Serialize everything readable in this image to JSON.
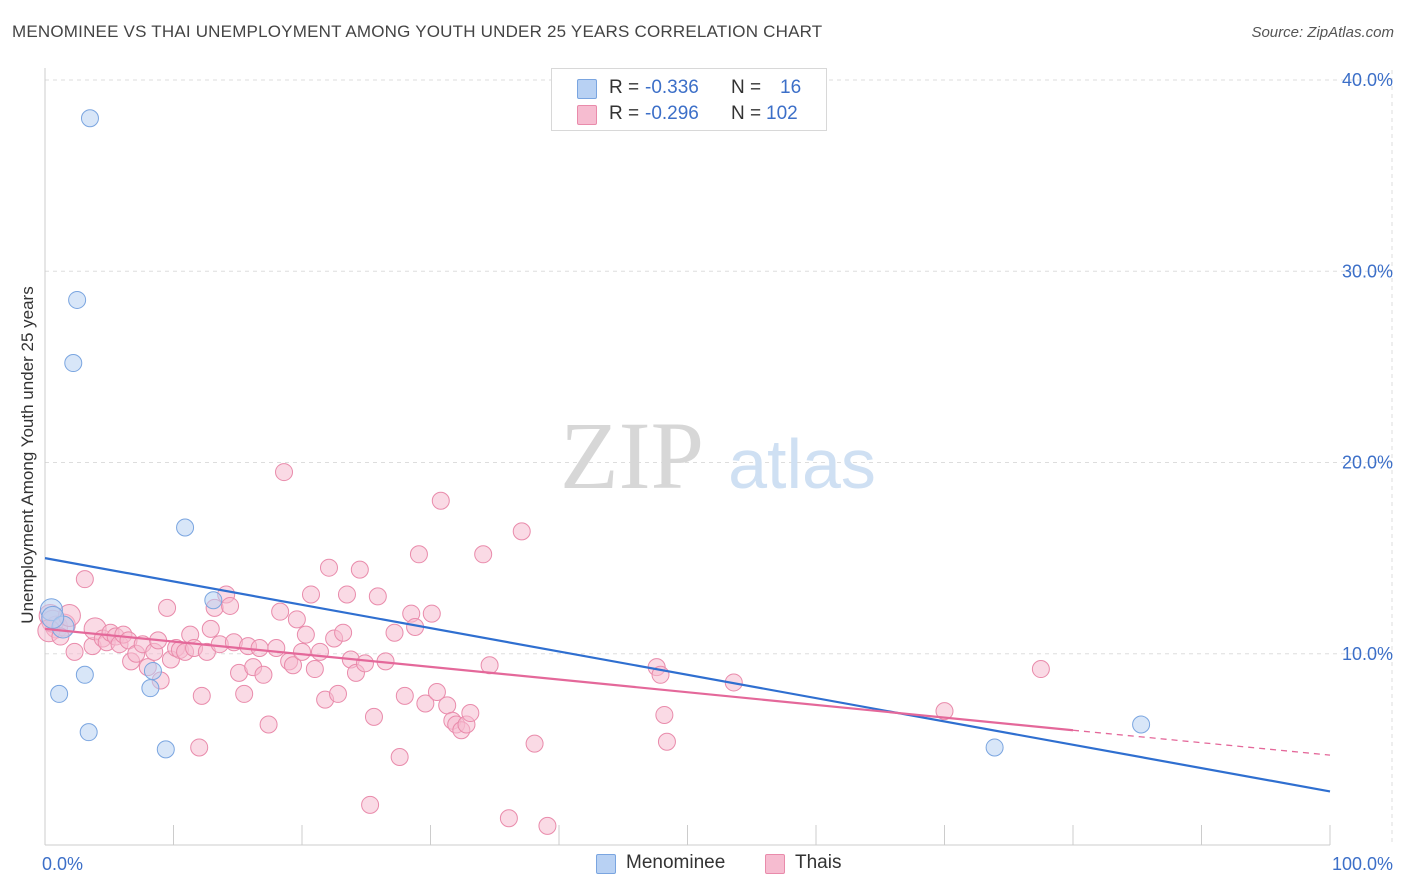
{
  "title": "MENOMINEE VS THAI UNEMPLOYMENT AMONG YOUTH UNDER 25 YEARS CORRELATION CHART",
  "source": "Source: ZipAtlas.com",
  "watermark": {
    "zip": "ZIP",
    "atlas": "atlas"
  },
  "legend": {
    "menominee": {
      "r_label": "R =",
      "r_value": "-0.336",
      "n_label": "N =",
      "n_value": "16"
    },
    "thais": {
      "r_label": "R =",
      "r_value": "-0.296",
      "n_label": "N =",
      "n_value": "102"
    }
  },
  "colors": {
    "menominee_fill": "#b8d1f3",
    "menominee_stroke": "#7aa5e0",
    "menominee_line": "#2f6fd0",
    "thais_fill": "#f6bcd0",
    "thais_stroke": "#e98bab",
    "thais_line": "#e4689a",
    "tick_label": "#3c6fc8",
    "grid": "#dddddd"
  },
  "chart_data": {
    "type": "scatter",
    "title": "MENOMINEE VS THAI UNEMPLOYMENT AMONG YOUTH UNDER 25 YEARS CORRELATION CHART",
    "xlabel": "",
    "ylabel": "Unemployment Among Youth under 25 years",
    "xlim": [
      0,
      100
    ],
    "ylim": [
      0,
      40
    ],
    "x_tick_labels": [
      "0.0%",
      "100.0%"
    ],
    "y_ticks": [
      10,
      20,
      30,
      40
    ],
    "y_tick_labels": [
      "10.0%",
      "20.0%",
      "30.0%",
      "40.0%"
    ],
    "grid": true,
    "legend_position": "top-center",
    "series": [
      {
        "name": "Menominee",
        "points": [
          [
            3.5,
            38.0
          ],
          [
            2.5,
            28.5
          ],
          [
            2.2,
            25.2
          ],
          [
            10.9,
            16.6
          ],
          [
            13.1,
            12.8
          ],
          [
            0.5,
            12.3
          ],
          [
            1.4,
            11.4
          ],
          [
            3.1,
            8.9
          ],
          [
            8.4,
            9.1
          ],
          [
            8.2,
            8.2
          ],
          [
            1.1,
            7.9
          ],
          [
            3.4,
            5.9
          ],
          [
            9.4,
            5.0
          ],
          [
            85.3,
            6.3
          ],
          [
            73.9,
            5.1
          ],
          [
            0.6,
            11.9
          ]
        ],
        "trend": {
          "x0": 0,
          "y0": 15.0,
          "x1": 100,
          "y1": 2.8
        }
      },
      {
        "name": "Thais",
        "points": [
          [
            0.4,
            12.0
          ],
          [
            0.9,
            11.4
          ],
          [
            0.6,
            11.7
          ],
          [
            1.5,
            11.5
          ],
          [
            1.9,
            12.0
          ],
          [
            2.3,
            10.1
          ],
          [
            3.1,
            13.9
          ],
          [
            3.7,
            10.4
          ],
          [
            3.9,
            11.3
          ],
          [
            4.5,
            10.8
          ],
          [
            4.8,
            10.6
          ],
          [
            5.1,
            11.1
          ],
          [
            5.5,
            10.9
          ],
          [
            5.8,
            10.5
          ],
          [
            6.1,
            11.0
          ],
          [
            6.5,
            10.7
          ],
          [
            6.7,
            9.6
          ],
          [
            7.1,
            10.0
          ],
          [
            7.6,
            10.5
          ],
          [
            8.0,
            9.3
          ],
          [
            8.5,
            10.1
          ],
          [
            8.8,
            10.7
          ],
          [
            9.0,
            8.6
          ],
          [
            9.5,
            12.4
          ],
          [
            9.8,
            9.7
          ],
          [
            10.2,
            10.3
          ],
          [
            10.5,
            10.2
          ],
          [
            10.9,
            10.1
          ],
          [
            11.3,
            11.0
          ],
          [
            11.6,
            10.3
          ],
          [
            12.0,
            5.1
          ],
          [
            12.2,
            7.8
          ],
          [
            12.6,
            10.1
          ],
          [
            12.9,
            11.3
          ],
          [
            13.2,
            12.4
          ],
          [
            13.6,
            10.5
          ],
          [
            14.1,
            13.1
          ],
          [
            14.4,
            12.5
          ],
          [
            14.7,
            10.6
          ],
          [
            15.1,
            9.0
          ],
          [
            15.5,
            7.9
          ],
          [
            15.8,
            10.4
          ],
          [
            16.2,
            9.3
          ],
          [
            16.7,
            10.3
          ],
          [
            17.0,
            8.9
          ],
          [
            17.4,
            6.3
          ],
          [
            18.0,
            10.3
          ],
          [
            18.3,
            12.2
          ],
          [
            18.6,
            19.5
          ],
          [
            19.0,
            9.6
          ],
          [
            19.3,
            9.4
          ],
          [
            19.6,
            11.8
          ],
          [
            20.0,
            10.1
          ],
          [
            20.3,
            11.0
          ],
          [
            20.7,
            13.1
          ],
          [
            21.0,
            9.2
          ],
          [
            21.4,
            10.1
          ],
          [
            21.8,
            7.6
          ],
          [
            22.1,
            14.5
          ],
          [
            22.5,
            10.8
          ],
          [
            22.8,
            7.9
          ],
          [
            23.2,
            11.1
          ],
          [
            23.5,
            13.1
          ],
          [
            23.8,
            9.7
          ],
          [
            24.2,
            9.0
          ],
          [
            24.5,
            14.4
          ],
          [
            24.9,
            9.5
          ],
          [
            25.3,
            2.1
          ],
          [
            25.6,
            6.7
          ],
          [
            25.9,
            13.0
          ],
          [
            26.5,
            9.6
          ],
          [
            27.2,
            11.1
          ],
          [
            27.6,
            4.6
          ],
          [
            28.0,
            7.8
          ],
          [
            28.5,
            12.1
          ],
          [
            28.8,
            11.4
          ],
          [
            29.1,
            15.2
          ],
          [
            29.6,
            7.4
          ],
          [
            30.1,
            12.1
          ],
          [
            30.5,
            8.0
          ],
          [
            30.8,
            18.0
          ],
          [
            31.3,
            7.3
          ],
          [
            31.7,
            6.5
          ],
          [
            32.0,
            6.3
          ],
          [
            32.4,
            6.0
          ],
          [
            32.8,
            6.3
          ],
          [
            33.1,
            6.9
          ],
          [
            34.1,
            15.2
          ],
          [
            34.6,
            9.4
          ],
          [
            36.1,
            1.4
          ],
          [
            37.1,
            16.4
          ],
          [
            38.1,
            5.3
          ],
          [
            39.1,
            1.0
          ],
          [
            47.6,
            9.3
          ],
          [
            47.9,
            8.9
          ],
          [
            48.2,
            6.8
          ],
          [
            48.4,
            5.4
          ],
          [
            53.6,
            8.5
          ],
          [
            70.0,
            7.0
          ],
          [
            77.5,
            9.2
          ],
          [
            0.3,
            11.2
          ],
          [
            1.2,
            10.9
          ]
        ],
        "trend": {
          "x0": 0,
          "y0": 11.3,
          "x1": 80,
          "y1": 6.0
        },
        "trend_dashed": {
          "x0": 80,
          "y0": 6.0,
          "x1": 100,
          "y1": 4.7
        }
      }
    ]
  }
}
